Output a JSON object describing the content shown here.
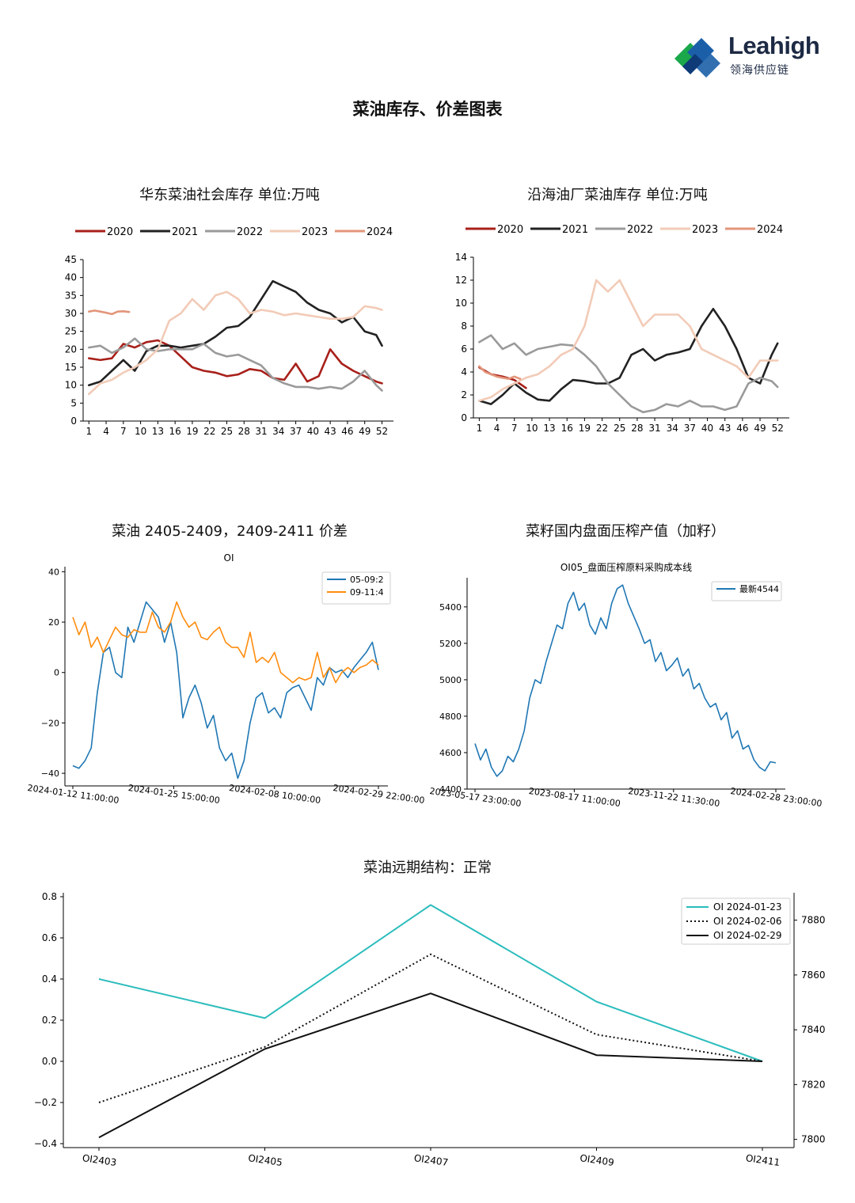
{
  "header": {
    "logo_name": "Leahigh",
    "logo_sub": "领海供应链",
    "page_title": "菜油库存、价差图表"
  },
  "colors": {
    "y2020": "#a8201a",
    "y2021": "#222222",
    "y2022": "#9a9a9a",
    "y2023": "#f2cbb7",
    "y2024": "#e3957a",
    "blue": "#1f77b4",
    "orange": "#ff8c0e",
    "teal": "#2bbcbc",
    "black": "#111111"
  },
  "chart_data": [
    {
      "id": "east",
      "type": "line",
      "title": "华东菜油社会库存  单位:万吨",
      "xlim": [
        0,
        54
      ],
      "ylim": [
        0,
        45
      ],
      "xticks": [
        "1",
        "4",
        "7",
        "10",
        "13",
        "16",
        "19",
        "22",
        "25",
        "28",
        "31",
        "34",
        "37",
        "40",
        "43",
        "46",
        "49",
        "52"
      ],
      "yticks": [
        "0",
        "5",
        "10",
        "15",
        "20",
        "25",
        "30",
        "35",
        "40",
        "45"
      ],
      "legend": "top",
      "series": [
        {
          "name": "2020",
          "x": [
            1,
            3,
            5,
            7,
            9,
            11,
            13,
            15,
            17,
            19,
            21,
            23,
            25,
            27,
            29,
            31,
            33,
            35,
            37,
            39,
            41,
            43,
            45,
            47,
            49,
            51,
            52
          ],
          "y": [
            17.5,
            17,
            17.5,
            21.5,
            20.5,
            22,
            22.5,
            21,
            18,
            15,
            14,
            13.5,
            12.5,
            13,
            14.5,
            14,
            12,
            11.5,
            16,
            11,
            12.5,
            20,
            16,
            14,
            12.5,
            11,
            10.5
          ]
        },
        {
          "name": "2021",
          "x": [
            1,
            3,
            5,
            7,
            9,
            11,
            13,
            15,
            17,
            19,
            21,
            23,
            25,
            27,
            29,
            31,
            33,
            35,
            37,
            39,
            41,
            43,
            45,
            47,
            49,
            51,
            52
          ],
          "y": [
            10,
            11,
            14,
            17,
            14,
            19.5,
            21,
            21,
            20.5,
            21,
            21.5,
            23.5,
            26,
            26.5,
            29,
            34,
            39,
            37.5,
            36,
            33,
            31,
            30,
            27.5,
            29,
            25,
            24,
            21
          ]
        },
        {
          "name": "2022",
          "x": [
            1,
            3,
            5,
            7,
            9,
            11,
            13,
            15,
            17,
            19,
            21,
            23,
            25,
            27,
            29,
            31,
            33,
            35,
            37,
            39,
            41,
            43,
            45,
            47,
            49,
            51,
            52
          ],
          "y": [
            20.5,
            21,
            19,
            20.5,
            23,
            20,
            19.5,
            20,
            20,
            20,
            21.5,
            19,
            18,
            18.5,
            17,
            15.5,
            12,
            10.5,
            9.5,
            9.5,
            9,
            9.5,
            9,
            11,
            14,
            10,
            8.5
          ]
        },
        {
          "name": "2023",
          "x": [
            1,
            3,
            5,
            7,
            9,
            11,
            13,
            15,
            17,
            19,
            21,
            23,
            25,
            27,
            29,
            31,
            33,
            35,
            37,
            39,
            41,
            43,
            45,
            47,
            49,
            51,
            52
          ],
          "y": [
            7.5,
            10.5,
            11.5,
            13.5,
            15,
            17,
            20,
            28,
            30,
            34,
            31,
            35,
            36,
            34,
            30,
            31,
            30.5,
            29.5,
            30,
            29.5,
            29,
            28.5,
            28.5,
            29,
            32,
            31.5,
            31
          ]
        },
        {
          "name": "2024",
          "x": [
            1,
            2,
            3,
            4,
            5,
            6,
            7,
            8
          ],
          "y": [
            30.5,
            30.8,
            30.5,
            30.2,
            29.8,
            30.5,
            30.6,
            30.4
          ]
        }
      ]
    },
    {
      "id": "coastal",
      "type": "line",
      "title": "沿海油厂菜油库存  单位:万吨",
      "xlim": [
        0,
        54
      ],
      "ylim": [
        0,
        14
      ],
      "xticks": [
        "1",
        "4",
        "7",
        "10",
        "13",
        "16",
        "19",
        "22",
        "25",
        "28",
        "31",
        "34",
        "37",
        "40",
        "43",
        "46",
        "49",
        "52"
      ],
      "yticks": [
        "0",
        "2",
        "4",
        "6",
        "8",
        "10",
        "12",
        "14"
      ],
      "legend": "top",
      "series": [
        {
          "name": "2020",
          "x": [
            1,
            3,
            5,
            7,
            9
          ],
          "y": [
            4.4,
            3.8,
            3.6,
            3.3,
            2.6
          ]
        },
        {
          "name": "2021",
          "x": [
            1,
            3,
            5,
            7,
            9,
            11,
            13,
            15,
            17,
            19,
            21,
            23,
            25,
            27,
            29,
            31,
            33,
            35,
            37,
            39,
            41,
            43,
            45,
            47,
            49,
            51,
            52
          ],
          "y": [
            1.5,
            1.2,
            2,
            3,
            2.2,
            1.6,
            1.5,
            2.5,
            3.3,
            3.2,
            3.0,
            3.0,
            3.5,
            5.5,
            6,
            5,
            5.5,
            5.7,
            6,
            8,
            9.5,
            8,
            6,
            3.5,
            3,
            5.5,
            6.5
          ]
        },
        {
          "name": "2022",
          "x": [
            1,
            3,
            5,
            7,
            9,
            11,
            13,
            15,
            17,
            19,
            21,
            23,
            25,
            27,
            29,
            31,
            33,
            35,
            37,
            39,
            41,
            43,
            45,
            47,
            49,
            51,
            52
          ],
          "y": [
            6.6,
            7.2,
            6,
            6.5,
            5.5,
            6,
            6.2,
            6.4,
            6.3,
            5.5,
            4.5,
            3,
            2,
            1,
            0.5,
            0.7,
            1.2,
            1,
            1.5,
            1,
            1,
            0.7,
            1,
            3,
            3.5,
            3.2,
            2.7
          ]
        },
        {
          "name": "2023",
          "x": [
            1,
            3,
            5,
            7,
            9,
            11,
            13,
            15,
            17,
            19,
            21,
            23,
            25,
            27,
            29,
            31,
            33,
            35,
            37,
            39,
            41,
            43,
            45,
            47,
            49,
            51,
            52
          ],
          "y": [
            1.5,
            1.8,
            2.5,
            3,
            3.5,
            3.8,
            4.5,
            5.5,
            6,
            8,
            12,
            11,
            12,
            10,
            8,
            9,
            9,
            9,
            8,
            6,
            5.5,
            5,
            4.5,
            3.5,
            5,
            5,
            5
          ]
        },
        {
          "name": "2024",
          "x": [
            1,
            2,
            3,
            4,
            5,
            6,
            7,
            8
          ],
          "y": [
            4.5,
            4.0,
            3.8,
            3.6,
            3.5,
            3.4,
            3.6,
            3.4
          ]
        }
      ]
    },
    {
      "id": "spread",
      "type": "line",
      "title": "菜油 2405-2409，2409-2411 价差",
      "subtitle": "OI",
      "ylim": [
        -45,
        42
      ],
      "yticks": [
        "40",
        "20",
        "0",
        "−20",
        "−40"
      ],
      "xticks": [
        "2024-01-12  11:00:00",
        "2024-01-25  15:00:00",
        "2024-02-08  10:00:00",
        "2024-02-29  22:00:00"
      ],
      "legend": "top-right",
      "series": [
        {
          "name": "05-09:2",
          "values": [
            -37,
            -38,
            -35,
            -30,
            -8,
            8,
            10,
            0,
            -2,
            18,
            12,
            20,
            28,
            25,
            22,
            12,
            20,
            8,
            -18,
            -10,
            -5,
            -12,
            -22,
            -17,
            -30,
            -35,
            -32,
            -42,
            -35,
            -20,
            -10,
            -8,
            -16,
            -14,
            -18,
            -8,
            -6,
            -5,
            -10,
            -15,
            -2,
            -5,
            2,
            0,
            1,
            -2,
            2,
            5,
            8,
            12,
            1
          ]
        },
        {
          "name": "09-11:4",
          "values": [
            22,
            15,
            20,
            10,
            14,
            8,
            13,
            18,
            15,
            14,
            17,
            16,
            16,
            24,
            18,
            16,
            20,
            28,
            22,
            18,
            20,
            14,
            13,
            16,
            18,
            12,
            10,
            10,
            6,
            16,
            4,
            6,
            4,
            8,
            0,
            -2,
            -4,
            -2,
            -3,
            -2,
            8,
            -2,
            2,
            -4,
            0,
            2,
            0,
            2,
            3,
            5,
            3
          ]
        }
      ]
    },
    {
      "id": "crush",
      "type": "line",
      "title": "菜籽国内盘面压榨产值（加籽）",
      "subtitle": "OI05_盘面压榨原料采购成本线",
      "ylim": [
        4400,
        5560
      ],
      "yticks": [
        "5400",
        "5200",
        "5000",
        "4800",
        "4600",
        "4400"
      ],
      "xticks": [
        "2023-05-17  23:00:00",
        "2023-08-17  11:00:00",
        "2023-11-22  11:30:00",
        "2024-02-28  23:00:00"
      ],
      "legend": "top-right",
      "series": [
        {
          "name": "最新4544",
          "values": [
            4650,
            4560,
            4620,
            4520,
            4470,
            4500,
            4580,
            4550,
            4620,
            4720,
            4900,
            5000,
            4980,
            5100,
            5200,
            5300,
            5280,
            5420,
            5480,
            5380,
            5420,
            5300,
            5250,
            5340,
            5280,
            5420,
            5500,
            5520,
            5420,
            5350,
            5280,
            5200,
            5220,
            5100,
            5150,
            5050,
            5080,
            5120,
            5020,
            5060,
            4950,
            4980,
            4900,
            4850,
            4870,
            4780,
            4820,
            4680,
            4720,
            4620,
            4640,
            4560,
            4520,
            4500,
            4550,
            4544
          ]
        }
      ]
    },
    {
      "id": "structure",
      "type": "line",
      "title": "菜油远期结构：正常",
      "categories": [
        "OI2403",
        "OI2405",
        "OI2407",
        "OI2409",
        "OI2411"
      ],
      "ylim": [
        -0.4,
        0.8
      ],
      "yticks": [
        "0.8",
        "0.6",
        "0.4",
        "0.2",
        "0.0",
        "−0.2",
        "−0.4"
      ],
      "y2lim": [
        7797,
        7890
      ],
      "y2ticks": [
        "7880",
        "7860",
        "7840",
        "7820",
        "7800"
      ],
      "legend": "top-right",
      "series": [
        {
          "name": "OI  2024-01-23",
          "values": [
            0.4,
            0.21,
            0.76,
            0.29,
            0.0
          ]
        },
        {
          "name": "OI  2024-02-06",
          "values": [
            -0.2,
            0.07,
            0.52,
            0.13,
            0.0
          ]
        },
        {
          "name": "OI  2024-02-29",
          "values": [
            -0.37,
            0.06,
            0.33,
            0.03,
            0.0
          ]
        }
      ]
    }
  ]
}
